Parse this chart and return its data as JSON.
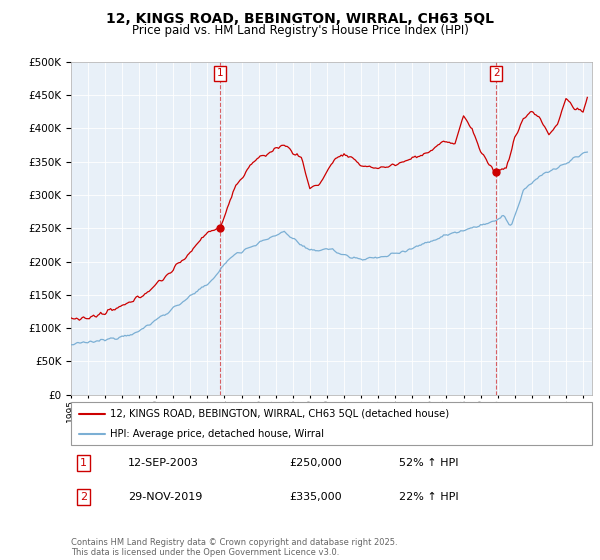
{
  "title": "12, KINGS ROAD, BEBINGTON, WIRRAL, CH63 5QL",
  "subtitle": "Price paid vs. HM Land Registry's House Price Index (HPI)",
  "red_label": "12, KINGS ROAD, BEBINGTON, WIRRAL, CH63 5QL (detached house)",
  "blue_label": "HPI: Average price, detached house, Wirral",
  "annotation1_date": "12-SEP-2003",
  "annotation1_price": "£250,000",
  "annotation1_hpi": "52% ↑ HPI",
  "annotation2_date": "29-NOV-2019",
  "annotation2_price": "£335,000",
  "annotation2_hpi": "22% ↑ HPI",
  "footer": "Contains HM Land Registry data © Crown copyright and database right 2025.\nThis data is licensed under the Open Government Licence v3.0.",
  "red_color": "#cc0000",
  "blue_color": "#7bafd4",
  "annotation_color": "#cc0000",
  "chart_bg": "#e8f0f8",
  "grid_color": "#ffffff",
  "ylim": [
    0,
    500000
  ],
  "yticks": [
    0,
    50000,
    100000,
    150000,
    200000,
    250000,
    300000,
    350000,
    400000,
    450000,
    500000
  ],
  "year_start": 1995,
  "year_end": 2025,
  "sale1_year": 2003.75,
  "sale1_price": 250000,
  "sale2_year": 2019.917,
  "sale2_price": 335000
}
